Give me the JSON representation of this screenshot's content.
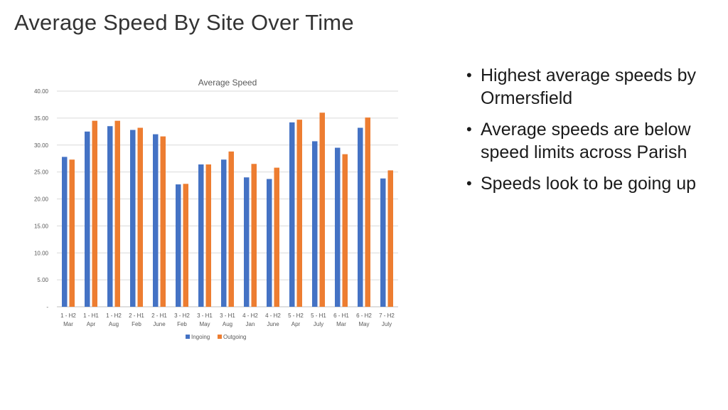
{
  "slide": {
    "title": "Average Speed By Site Over Time"
  },
  "bullets": [
    "Highest average speeds by Ormersfield",
    "Average speeds are below speed limits across Parish",
    "Speeds look to be going up"
  ],
  "chart_data": {
    "type": "bar",
    "title": "Average Speed",
    "xlabel": "",
    "ylabel": "",
    "ylim": [
      0,
      40
    ],
    "yticks": [
      "-",
      "5.00",
      "10.00",
      "15.00",
      "20.00",
      "25.00",
      "30.00",
      "35.00",
      "40.00"
    ],
    "grid": true,
    "legend_position": "bottom",
    "categories": [
      [
        "1 - H2",
        "Mar"
      ],
      [
        "1 - H1",
        "Apr"
      ],
      [
        "1 - H2",
        "Aug"
      ],
      [
        "2 - H1",
        "Feb"
      ],
      [
        "2 - H1",
        "June"
      ],
      [
        "3 - H2",
        "Feb"
      ],
      [
        "3 - H1",
        "May"
      ],
      [
        "3 - H1",
        "Aug"
      ],
      [
        "4 - H2",
        "Jan"
      ],
      [
        "4 - H2",
        "June"
      ],
      [
        "5 - H2",
        "Apr"
      ],
      [
        "5 - H1",
        "July"
      ],
      [
        "6 - H1",
        "Mar"
      ],
      [
        "6 - H2",
        "May"
      ],
      [
        "7 - H2",
        "July"
      ]
    ],
    "series": [
      {
        "name": "Ingoing",
        "color": "#4472C4",
        "values": [
          27.8,
          32.5,
          33.5,
          32.8,
          32.0,
          22.7,
          26.4,
          27.3,
          24.0,
          23.7,
          34.2,
          30.7,
          29.5,
          33.2,
          23.8
        ]
      },
      {
        "name": "Outgoing",
        "color": "#ED7D31",
        "values": [
          27.3,
          34.5,
          34.5,
          33.2,
          31.6,
          22.8,
          26.4,
          28.8,
          26.5,
          25.8,
          34.7,
          36.0,
          28.3,
          35.1,
          25.3
        ]
      }
    ]
  }
}
